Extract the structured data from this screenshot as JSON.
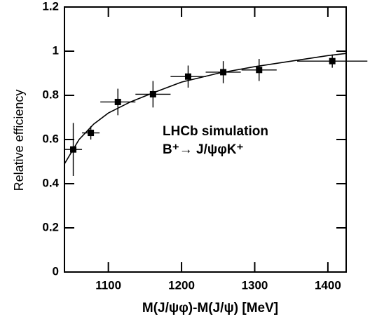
{
  "chart_data": {
    "type": "errorbar",
    "xlabel": "M(J/ψφ)-M(J/ψ) [MeV]",
    "ylabel": "Relative efficiency",
    "annotations": [
      "LHCb simulation",
      "B⁺→ J/ψφK⁺"
    ],
    "xlim": [
      1040,
      1425
    ],
    "xticks": [
      1100,
      1200,
      1300,
      1400
    ],
    "ylim": [
      0,
      1.2
    ],
    "yticks": [
      0,
      0.2,
      0.4,
      0.6,
      0.8,
      1,
      1.2
    ],
    "series": [
      {
        "x": [
          1052,
          1076,
          1113,
          1161,
          1209,
          1257,
          1306,
          1406
        ],
        "xerr": [
          12,
          12,
          24,
          24,
          24,
          24,
          24,
          48
        ],
        "values": [
          0.555,
          0.63,
          0.77,
          0.805,
          0.885,
          0.905,
          0.915,
          0.955
        ],
        "yerr": [
          0.12,
          0.03,
          0.06,
          0.06,
          0.05,
          0.05,
          0.05,
          0.03
        ],
        "color": "#000000"
      }
    ],
    "fit": {
      "x": [
        1040,
        1060,
        1080,
        1100,
        1130,
        1160,
        1200,
        1250,
        1300,
        1350,
        1400,
        1425
      ],
      "values": [
        0.49,
        0.6,
        0.67,
        0.72,
        0.77,
        0.81,
        0.86,
        0.9,
        0.93,
        0.955,
        0.98,
        0.99
      ],
      "color": "#000000"
    }
  }
}
